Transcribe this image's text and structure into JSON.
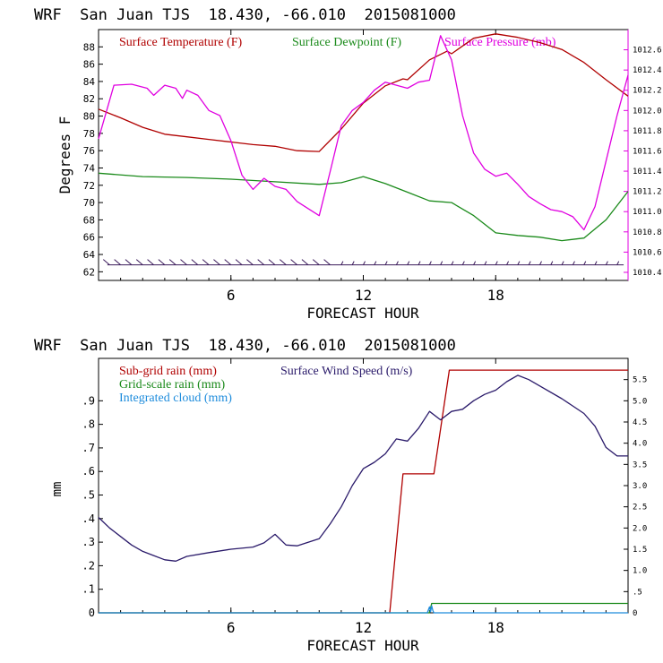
{
  "chart_data": [
    {
      "type": "line",
      "title": "WRF  San Juan TJS  18.430, -66.010  2015081000",
      "xlabel": "FORECAST HOUR",
      "ylabel": "Degrees F",
      "xlim": [
        0,
        24
      ],
      "xticks": [
        "6",
        "12",
        "18"
      ],
      "ylim": [
        61,
        90
      ],
      "yticks": [
        "62",
        "64",
        "66",
        "68",
        "70",
        "72",
        "74",
        "76",
        "78",
        "80",
        "82",
        "84",
        "86",
        "88"
      ],
      "y2lim": [
        1010.32,
        1012.8
      ],
      "y2ticks": [
        "1010.4",
        "1010.6",
        "1010.8",
        "1011.0",
        "1011.2",
        "1011.4",
        "1011.6",
        "1011.8",
        "1012.0",
        "1012.2",
        "1012.4",
        "1012.6"
      ],
      "grid": false,
      "legend_position": "top",
      "series": [
        {
          "name": "Surface Temperature (F)",
          "color": "#b00000",
          "axis": "left",
          "x": [
            0,
            1,
            2,
            3,
            4,
            5,
            6,
            7,
            8,
            9,
            10,
            11,
            12,
            13,
            13.8,
            14,
            15,
            15.8,
            16,
            17,
            18,
            19,
            20,
            21,
            22,
            23,
            24
          ],
          "y": [
            80.8,
            79.8,
            78.7,
            77.9,
            77.6,
            77.3,
            77.0,
            76.7,
            76.5,
            76.0,
            75.9,
            78.5,
            81.5,
            83.5,
            84.3,
            84.2,
            86.5,
            87.5,
            87.2,
            89.0,
            89.5,
            89.1,
            88.5,
            87.7,
            86.2,
            84.2,
            82.3
          ]
        },
        {
          "name": "Surface Dewpoint (F)",
          "color": "#1a8a1a",
          "axis": "left",
          "x": [
            0,
            2,
            4,
            6,
            8,
            10,
            11,
            12,
            13,
            14,
            15,
            16,
            17,
            18,
            19,
            20,
            21,
            22,
            23,
            24
          ],
          "y": [
            73.4,
            73.0,
            72.9,
            72.7,
            72.4,
            72.1,
            72.3,
            73.0,
            72.2,
            71.2,
            70.2,
            70.0,
            68.5,
            66.5,
            66.2,
            66.0,
            65.6,
            65.9,
            68.0,
            71.3
          ]
        },
        {
          "name": "Surface Pressure (mb)",
          "color": "#e000e0",
          "axis": "right",
          "x": [
            0,
            0.7,
            1.5,
            2.2,
            2.5,
            3,
            3.5,
            3.8,
            4,
            4.5,
            5,
            5.5,
            6,
            6.5,
            7,
            7.5,
            8,
            8.5,
            9,
            9.5,
            10,
            10.5,
            11,
            11.5,
            12,
            12.5,
            13,
            13.5,
            14,
            14.5,
            15,
            15.5,
            16,
            16.5,
            17,
            17.5,
            18,
            18.5,
            19,
            19.5,
            20,
            20.5,
            21,
            21.5,
            22,
            22.5,
            23,
            23.5,
            24
          ],
          "y": [
            1011.72,
            1012.25,
            1012.26,
            1012.22,
            1012.15,
            1012.25,
            1012.22,
            1012.12,
            1012.2,
            1012.15,
            1012.0,
            1011.95,
            1011.7,
            1011.36,
            1011.22,
            1011.33,
            1011.25,
            1011.22,
            1011.1,
            1011.03,
            1010.96,
            1011.4,
            1011.85,
            1012.0,
            1012.08,
            1012.2,
            1012.28,
            1012.25,
            1012.22,
            1012.28,
            1012.3,
            1012.74,
            1012.5,
            1011.95,
            1011.58,
            1011.42,
            1011.35,
            1011.38,
            1011.27,
            1011.15,
            1011.08,
            1011.02,
            1011.0,
            1010.95,
            1010.82,
            1011.05,
            1011.5,
            1011.95,
            1012.35
          ]
        }
      ]
    },
    {
      "type": "line",
      "title": "WRF  San Juan TJS  18.430, -66.010  2015081000",
      "xlabel": "FORECAST HOUR",
      "ylabel": "mm",
      "xlim": [
        0,
        24
      ],
      "xticks": [
        "6",
        "12",
        "18"
      ],
      "ylim": [
        0,
        1.08
      ],
      "yticks": [
        "0",
        ".1",
        ".2",
        ".3",
        ".4",
        ".5",
        ".6",
        ".7",
        ".8",
        ".9"
      ],
      "y2lim": [
        0,
        6.0
      ],
      "y2ticks": [
        "0",
        ".5",
        "1.0",
        "1.5",
        "2.0",
        "2.5",
        "3.0",
        "3.5",
        "4.0",
        "4.5",
        "5.0",
        "5.5"
      ],
      "grid": false,
      "legend_position": "top-left",
      "series": [
        {
          "name": "Sub-grid rain (mm)",
          "color": "#b00000",
          "axis": "left",
          "x": [
            0,
            13.2,
            13.8,
            15.2,
            15.9,
            24
          ],
          "y": [
            0,
            0,
            0.59,
            0.59,
            1.03,
            1.03
          ]
        },
        {
          "name": "Grid-scale rain (mm)",
          "color": "#1a8a1a",
          "axis": "left",
          "x": [
            0,
            15.0,
            15.1,
            24
          ],
          "y": [
            0,
            0,
            0.04,
            0.04
          ]
        },
        {
          "name": "Integrated cloud (mm)",
          "color": "#1e8cdc",
          "axis": "left",
          "x": [
            0,
            14.9,
            15.0,
            15.05,
            15.1,
            15.15,
            15.2,
            24
          ],
          "y": [
            0,
            0,
            0.025,
            0.005,
            0.03,
            0.01,
            0,
            0
          ]
        },
        {
          "name": "Surface Wind Speed (m/s)",
          "color": "#2a1a6a",
          "axis": "right",
          "x": [
            0,
            0.5,
            1,
            1.5,
            2,
            2.5,
            3,
            3.5,
            4,
            5,
            6,
            7,
            7.5,
            8,
            8.5,
            9,
            10,
            10.5,
            11,
            11.5,
            12,
            12.5,
            13,
            13.5,
            14,
            14.5,
            15,
            15.5,
            16,
            16.5,
            17,
            17.5,
            18,
            18.5,
            19,
            19.5,
            20,
            21,
            22,
            22.5,
            23,
            23.5,
            24
          ],
          "y": [
            2.25,
            2.0,
            1.8,
            1.6,
            1.45,
            1.35,
            1.25,
            1.22,
            1.33,
            1.42,
            1.5,
            1.55,
            1.65,
            1.85,
            1.6,
            1.58,
            1.75,
            2.1,
            2.5,
            3.0,
            3.4,
            3.55,
            3.75,
            4.1,
            4.05,
            4.35,
            4.75,
            4.55,
            4.75,
            4.8,
            5.0,
            5.15,
            5.25,
            5.45,
            5.6,
            5.5,
            5.35,
            5.05,
            4.7,
            4.4,
            3.9,
            3.7,
            3.7
          ]
        }
      ]
    }
  ]
}
